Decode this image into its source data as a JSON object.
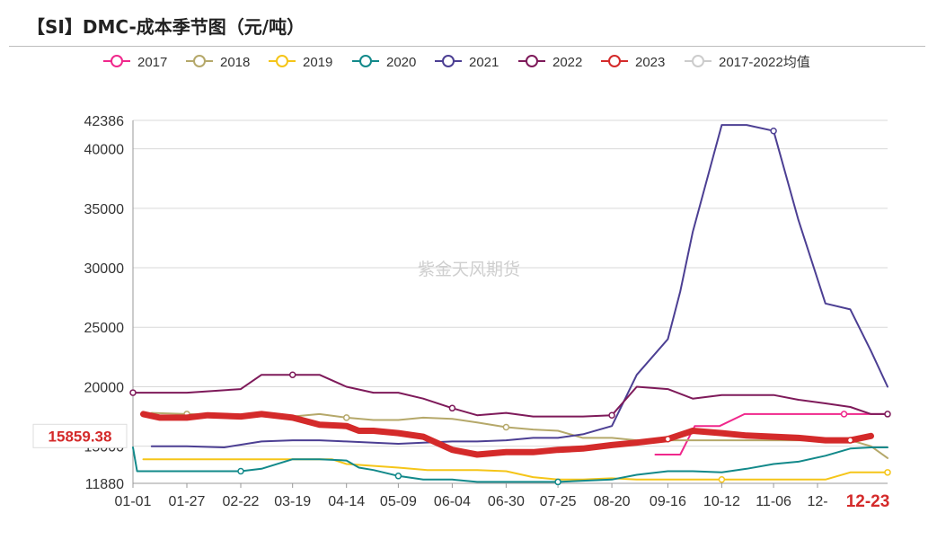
{
  "title": "【SI】DMC-成本季节图（元/吨）",
  "watermark": "紫金天风期货",
  "chart_data": {
    "type": "line",
    "title": "【SI】DMC-成本季节图（元/吨）",
    "x_ticks": [
      "01-01",
      "01-27",
      "02-22",
      "03-19",
      "04-14",
      "05-09",
      "06-04",
      "06-30",
      "07-25",
      "08-20",
      "09-16",
      "10-12",
      "11-06",
      "12-",
      "12-23"
    ],
    "y_ticks": [
      11880,
      15000,
      20000,
      25000,
      30000,
      35000,
      40000,
      42386
    ],
    "ylim": [
      11880,
      42386
    ],
    "xlim": [
      "01-01",
      "12-23"
    ],
    "grid": "horizontal",
    "legend_position": "top",
    "highlight_label": "15859.38",
    "highlight_x_label": "12-23",
    "series": [
      {
        "name": "2017",
        "color": "#f0288c",
        "x": [
          "09-10",
          "09-22",
          "09-29",
          "10-11",
          "10-23",
          "11-04",
          "11-16",
          "11-28",
          "12-10",
          "12-23",
          "12-31"
        ],
        "y": [
          14300,
          14300,
          16700,
          16700,
          17700,
          17700,
          17700,
          17700,
          17700,
          17700,
          17700
        ],
        "markers": [
          "12-10"
        ]
      },
      {
        "name": "2018",
        "color": "#b5a86a",
        "x": [
          "01-10",
          "01-27",
          "02-14",
          "03-04",
          "03-19",
          "04-01",
          "04-14",
          "04-27",
          "05-09",
          "05-21",
          "06-04",
          "06-16",
          "06-30",
          "07-13",
          "07-25",
          "08-06",
          "08-20",
          "09-01",
          "09-16",
          "09-28",
          "10-12",
          "10-24",
          "11-06",
          "11-18",
          "12-01",
          "12-13",
          "12-23",
          "12-31"
        ],
        "y": [
          17800,
          17700,
          17600,
          17600,
          17500,
          17700,
          17400,
          17200,
          17200,
          17400,
          17300,
          17000,
          16600,
          16400,
          16300,
          15700,
          15700,
          15500,
          15500,
          15500,
          15500,
          15500,
          15500,
          15500,
          15500,
          15500,
          15000,
          14000
        ],
        "markers": [
          "01-27",
          "04-14",
          "06-30"
        ]
      },
      {
        "name": "2019",
        "color": "#f5c518",
        "x": [
          "01-06",
          "01-27",
          "02-22",
          "03-19",
          "04-07",
          "04-14",
          "05-09",
          "05-23",
          "06-16",
          "06-30",
          "07-13",
          "07-25",
          "08-06",
          "08-20",
          "09-01",
          "09-16",
          "09-28",
          "10-12",
          "10-24",
          "11-06",
          "11-18",
          "12-01",
          "12-13",
          "12-23",
          "12-31"
        ],
        "y": [
          13900,
          13900,
          13900,
          13900,
          13900,
          13500,
          13200,
          13000,
          13000,
          12900,
          12400,
          12200,
          12200,
          12300,
          12200,
          12200,
          12200,
          12200,
          12200,
          12200,
          12200,
          12200,
          12800,
          12800,
          12800
        ],
        "markers": [
          "10-12",
          "12-31"
        ]
      },
      {
        "name": "2020",
        "color": "#12898a",
        "x": [
          "01-01",
          "01-03",
          "01-27",
          "02-22",
          "03-04",
          "03-19",
          "04-01",
          "04-14",
          "04-20",
          "04-27",
          "05-09",
          "05-21",
          "06-04",
          "06-16",
          "06-30",
          "07-13",
          "07-25",
          "08-06",
          "08-20",
          "09-01",
          "09-16",
          "09-28",
          "10-12",
          "10-24",
          "11-06",
          "11-18",
          "12-01",
          "12-13",
          "12-23",
          "12-31"
        ],
        "y": [
          14900,
          12900,
          12900,
          12900,
          13100,
          13900,
          13900,
          13800,
          13200,
          13000,
          12500,
          12200,
          12200,
          12000,
          12000,
          12000,
          12000,
          12100,
          12200,
          12600,
          12900,
          12900,
          12800,
          13100,
          13500,
          13700,
          14200,
          14800,
          14900,
          14900
        ],
        "markers": [
          "02-22",
          "05-09",
          "07-25"
        ]
      },
      {
        "name": "2021",
        "color": "#4c3f93",
        "x": [
          "01-10",
          "01-27",
          "02-14",
          "03-04",
          "03-19",
          "04-01",
          "04-14",
          "04-27",
          "05-09",
          "05-21",
          "06-04",
          "06-16",
          "06-30",
          "07-13",
          "07-25",
          "08-06",
          "08-20",
          "09-01",
          "09-16",
          "09-22",
          "09-28",
          "10-12",
          "10-24",
          "11-06",
          "11-18",
          "12-01",
          "12-13",
          "12-23",
          "12-31"
        ],
        "y": [
          15000,
          15000,
          14900,
          15400,
          15500,
          15500,
          15400,
          15300,
          15200,
          15300,
          15400,
          15400,
          15500,
          15700,
          15700,
          16000,
          16700,
          21000,
          24000,
          28000,
          33000,
          42000,
          42000,
          41500,
          34000,
          27000,
          26500,
          23000,
          20000
        ],
        "markers": [
          "11-06"
        ]
      },
      {
        "name": "2022",
        "color": "#7e1a5a",
        "x": [
          "01-01",
          "01-27",
          "02-22",
          "03-04",
          "03-19",
          "04-01",
          "04-14",
          "04-27",
          "05-09",
          "05-21",
          "06-04",
          "06-16",
          "06-30",
          "07-13",
          "07-25",
          "08-06",
          "08-20",
          "09-01",
          "09-16",
          "09-28",
          "10-12",
          "10-24",
          "11-06",
          "11-18",
          "12-01",
          "12-13",
          "12-23",
          "12-31"
        ],
        "y": [
          19500,
          19500,
          19800,
          21000,
          21000,
          21000,
          20000,
          19500,
          19500,
          19000,
          18200,
          17600,
          17800,
          17500,
          17500,
          17500,
          17600,
          20000,
          19800,
          19000,
          19300,
          19300,
          19300,
          18900,
          18600,
          18300,
          17700,
          17700
        ],
        "markers": [
          "01-01",
          "03-19",
          "06-04",
          "08-20",
          "12-31"
        ]
      },
      {
        "name": "2023",
        "color": "#d42a2a",
        "x": [
          "01-06",
          "01-14",
          "01-27",
          "02-06",
          "02-22",
          "03-04",
          "03-19",
          "04-01",
          "04-14",
          "04-20",
          "04-27",
          "05-09",
          "05-21",
          "06-04",
          "06-16",
          "06-30",
          "07-13",
          "07-25",
          "08-06",
          "08-20",
          "09-01",
          "09-16",
          "09-28",
          "10-12",
          "10-24",
          "11-06",
          "11-18",
          "12-01",
          "12-13",
          "12-23"
        ],
        "y": [
          17700,
          17400,
          17400,
          17600,
          17500,
          17700,
          17400,
          16800,
          16700,
          16300,
          16300,
          16100,
          15800,
          14700,
          14300,
          14500,
          14500,
          14700,
          14800,
          15100,
          15300,
          15600,
          16300,
          16100,
          15900,
          15800,
          15700,
          15500,
          15500,
          15859.38
        ],
        "markers": [
          "09-16",
          "12-13"
        ]
      },
      {
        "name": "2017-2022均值",
        "color": "#cccccc",
        "hidden": true,
        "x": [],
        "y": [],
        "markers": []
      }
    ]
  }
}
